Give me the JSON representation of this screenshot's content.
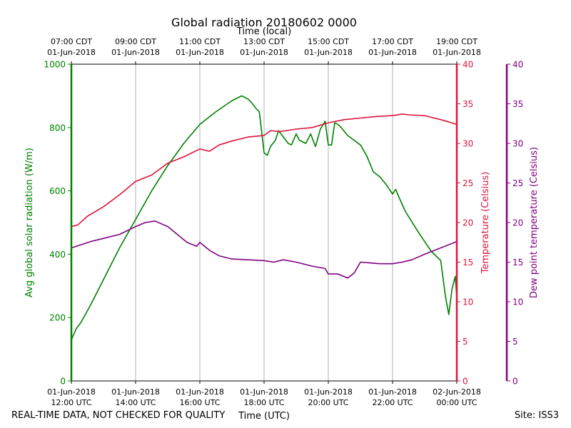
{
  "chart_data": {
    "type": "line",
    "title": "Global radiation 20180602 0000",
    "top_axis_label": "Time (local)",
    "xlabel": "Time (UTC)",
    "top_ticks": [
      {
        "line1": "07:00 CDT",
        "line2": "01-Jun-2018"
      },
      {
        "line1": "09:00 CDT",
        "line2": "01-Jun-2018"
      },
      {
        "line1": "11:00 CDT",
        "line2": "01-Jun-2018"
      },
      {
        "line1": "13:00 CDT",
        "line2": "01-Jun-2018"
      },
      {
        "line1": "15:00 CDT",
        "line2": "01-Jun-2018"
      },
      {
        "line1": "17:00 CDT",
        "line2": "01-Jun-2018"
      },
      {
        "line1": "19:00 CDT",
        "line2": "01-Jun-2018"
      }
    ],
    "bottom_ticks": [
      {
        "line1": "01-Jun-2018",
        "line2": "12:00 UTC"
      },
      {
        "line1": "01-Jun-2018",
        "line2": "14:00 UTC"
      },
      {
        "line1": "01-Jun-2018",
        "line2": "16:00 UTC"
      },
      {
        "line1": "01-Jun-2018",
        "line2": "18:00 UTC"
      },
      {
        "line1": "01-Jun-2018",
        "line2": "20:00 UTC"
      },
      {
        "line1": "01-Jun-2018",
        "line2": "22:00 UTC"
      },
      {
        "line1": "02-Jun-2018",
        "line2": "00:00 UTC"
      }
    ],
    "xlim_hours_utc": [
      12,
      24
    ],
    "grid": "vertical",
    "axes": [
      {
        "id": "radiation",
        "label": "Avg global solar radiation (W/m)",
        "ylim": [
          0,
          1000
        ],
        "ticks": [
          0,
          200,
          400,
          600,
          800,
          1000
        ],
        "color": "#008000",
        "side": "left"
      },
      {
        "id": "temperature",
        "label": "Temperature (Celsius)",
        "ylim": [
          0,
          40
        ],
        "ticks": [
          0,
          5,
          10,
          15,
          20,
          25,
          30,
          35,
          40
        ],
        "color": "#dc143c",
        "side": "right"
      },
      {
        "id": "dewpoint",
        "label": "Dew point temperature (Celsius)",
        "ylim": [
          0,
          40
        ],
        "ticks": [
          0,
          5,
          10,
          15,
          20,
          25,
          30,
          35,
          40
        ],
        "color": "#800080",
        "side": "right-offset"
      }
    ],
    "series": [
      {
        "name": "Avg global solar radiation",
        "axis": "radiation",
        "color": "#008000",
        "x": [
          12.0,
          12.15,
          12.3,
          12.6,
          13.0,
          13.5,
          14.0,
          14.5,
          15.0,
          15.5,
          16.0,
          16.5,
          17.0,
          17.3,
          17.5,
          17.6,
          17.75,
          17.85,
          18.0,
          18.1,
          18.2,
          18.35,
          18.45,
          18.6,
          18.75,
          18.85,
          19.0,
          19.1,
          19.3,
          19.45,
          19.6,
          19.75,
          19.9,
          20.0,
          20.1,
          20.2,
          20.3,
          20.4,
          20.6,
          20.8,
          21.0,
          21.2,
          21.4,
          21.6,
          21.8,
          22.0,
          22.1,
          22.2,
          22.4,
          22.8,
          23.2,
          23.5,
          23.65,
          23.75,
          23.85,
          23.95,
          24.0
        ],
        "y": [
          130,
          165,
          185,
          240,
          320,
          420,
          510,
          600,
          680,
          750,
          810,
          850,
          885,
          900,
          890,
          880,
          860,
          850,
          720,
          712,
          740,
          760,
          790,
          770,
          750,
          745,
          780,
          760,
          750,
          780,
          740,
          795,
          820,
          745,
          745,
          815,
          810,
          800,
          775,
          760,
          745,
          710,
          660,
          645,
          620,
          590,
          605,
          580,
          535,
          470,
          410,
          380,
          265,
          210,
          290,
          330,
          265
        ]
      },
      {
        "name": "Temperature",
        "axis": "temperature",
        "color": "#dc143c",
        "x": [
          12.0,
          12.2,
          12.5,
          13.0,
          13.5,
          14.0,
          14.5,
          15.0,
          15.5,
          16.0,
          16.3,
          16.6,
          17.0,
          17.5,
          18.0,
          18.2,
          18.5,
          19.0,
          19.5,
          20.0,
          20.5,
          21.0,
          21.5,
          22.0,
          22.3,
          22.5,
          23.0,
          23.5,
          24.0
        ],
        "y": [
          19.5,
          19.7,
          20.8,
          22.0,
          23.5,
          25.2,
          26.0,
          27.5,
          28.3,
          29.3,
          29.0,
          29.8,
          30.3,
          30.8,
          31.0,
          31.6,
          31.5,
          31.8,
          32.0,
          32.6,
          33.0,
          33.2,
          33.4,
          33.5,
          33.7,
          33.6,
          33.5,
          33.0,
          32.4
        ]
      },
      {
        "name": "Dew point temperature",
        "axis": "dewpoint",
        "color": "#800080",
        "x": [
          12.0,
          12.3,
          12.6,
          13.0,
          13.5,
          14.0,
          14.3,
          14.6,
          15.0,
          15.3,
          15.6,
          15.9,
          16.0,
          16.3,
          16.6,
          17.0,
          17.5,
          18.0,
          18.3,
          18.6,
          19.0,
          19.5,
          19.9,
          20.0,
          20.3,
          20.6,
          20.8,
          21.0,
          21.3,
          21.6,
          22.0,
          22.3,
          22.6,
          23.0,
          23.5,
          24.0
        ],
        "y": [
          16.8,
          17.2,
          17.6,
          18.0,
          18.5,
          19.5,
          20.0,
          20.2,
          19.5,
          18.5,
          17.5,
          17.0,
          17.5,
          16.5,
          15.8,
          15.4,
          15.3,
          15.2,
          15.0,
          15.3,
          15.0,
          14.5,
          14.2,
          13.5,
          13.5,
          13.0,
          13.6,
          15.0,
          14.9,
          14.8,
          14.8,
          15.0,
          15.3,
          16.0,
          16.8,
          17.6
        ]
      }
    ]
  },
  "footer": {
    "note": "REAL-TIME DATA, NOT CHECKED FOR QUALITY",
    "site": "Site: ISS3"
  }
}
